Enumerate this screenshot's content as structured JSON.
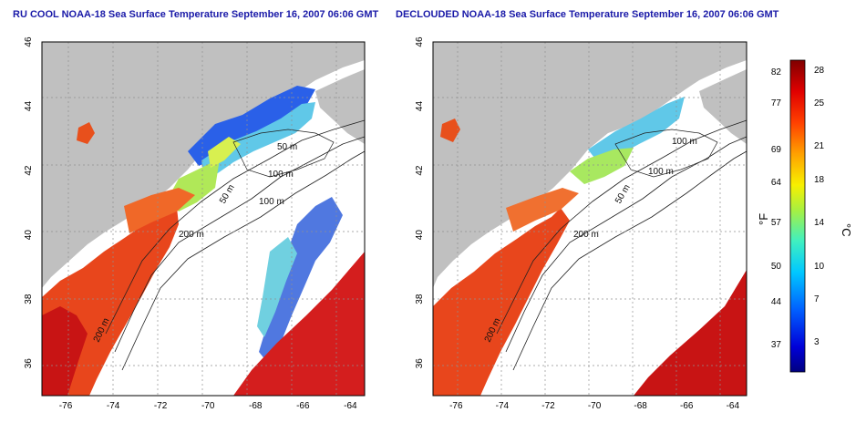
{
  "panels": [
    {
      "title": "RU COOL NOAA-18 Sea Surface Temperature September 16, 2007 06:06 GMT",
      "lon_ticks": [
        "-76",
        "-74",
        "-72",
        "-70",
        "-68",
        "-66",
        "-64"
      ],
      "lat_ticks": [
        "36",
        "38",
        "40",
        "42",
        "44",
        "46"
      ],
      "contours": [
        "50 m",
        "100 m",
        "100 m",
        "50 m",
        "200 m",
        "200 m"
      ]
    },
    {
      "title": "DECLOUDED NOAA-18 Sea Surface Temperature September 16, 2007 06:06 GMT",
      "lon_ticks": [
        "-76",
        "-74",
        "-72",
        "-70",
        "-68",
        "-66",
        "-64"
      ],
      "lat_ticks": [
        "36",
        "38",
        "40",
        "42",
        "44",
        "46"
      ],
      "contours": [
        "100 m",
        "100 m",
        "50 m",
        "200 m",
        "200 m"
      ]
    }
  ],
  "colorbar": {
    "fahrenheit_label": "°F",
    "celsius_label": "°C",
    "fahrenheit_ticks": [
      "82",
      "77",
      "69",
      "64",
      "57",
      "50",
      "44",
      "37"
    ],
    "celsius_ticks": [
      "28",
      "25",
      "21",
      "18",
      "14",
      "10",
      "7",
      "3"
    ]
  },
  "colors": {
    "land": "#c0c0c0",
    "cloud": "#ffffff",
    "title": "#1a1aa8",
    "warm": "#e8461c",
    "hot": "#c81414",
    "cool": "#6cd0ea",
    "cold": "#1e4ae0"
  }
}
